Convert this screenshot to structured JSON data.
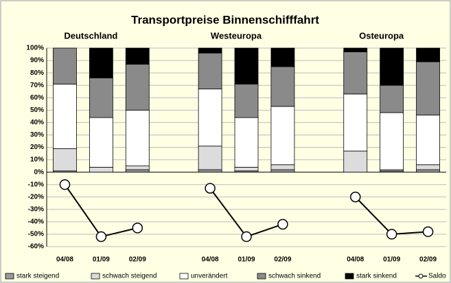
{
  "chart_data": {
    "type": "bar",
    "stacked": true,
    "title": "Transportpreise Binnenschifffahrt",
    "groups": [
      "Deutschland",
      "Westeuropa",
      "Osteuropa"
    ],
    "categories": [
      "04/08",
      "01/09",
      "02/09",
      null,
      "04/08",
      "01/09",
      "02/09",
      null,
      "04/08",
      "01/09",
      "02/09"
    ],
    "series": [
      {
        "name": "stark steigend",
        "color": "#9a9a9a",
        "values": [
          1,
          0,
          2,
          null,
          2,
          1,
          2,
          null,
          0,
          1,
          2
        ]
      },
      {
        "name": "schwach steigend",
        "color": "#dcdcdc",
        "values": [
          18,
          4,
          3,
          null,
          19,
          3,
          4,
          null,
          17,
          1,
          4
        ]
      },
      {
        "name": "unverändert",
        "color": "#ffffff",
        "values": [
          52,
          40,
          45,
          null,
          46,
          40,
          47,
          null,
          46,
          46,
          40
        ]
      },
      {
        "name": "schwach sinkend",
        "color": "#8a8a8a",
        "values": [
          29,
          32,
          37,
          null,
          29,
          27,
          32,
          null,
          34,
          22,
          43
        ]
      },
      {
        "name": "stark sinkend",
        "color": "#000000",
        "values": [
          0,
          24,
          13,
          null,
          4,
          29,
          15,
          null,
          3,
          30,
          11
        ]
      },
      {
        "name": "Saldo",
        "type": "line",
        "color": "#000000",
        "values": [
          -10,
          -52,
          -45,
          null,
          -13,
          -52,
          -42,
          null,
          -20,
          -50,
          -48
        ]
      }
    ],
    "ylim": [
      -60,
      100
    ],
    "yticks": [
      {
        "value": -60,
        "label": "-60%"
      },
      {
        "value": -50,
        "label": "-50%"
      },
      {
        "value": -40,
        "label": "-40%"
      },
      {
        "value": -30,
        "label": "-30%"
      },
      {
        "value": -20,
        "label": "-20%"
      },
      {
        "value": -10,
        "label": "-10%"
      },
      {
        "value": 0,
        "label": "0%"
      },
      {
        "value": 10,
        "label": "10%"
      },
      {
        "value": 20,
        "label": "20%"
      },
      {
        "value": 30,
        "label": "30%"
      },
      {
        "value": 40,
        "label": "40%"
      },
      {
        "value": 50,
        "label": "50%"
      },
      {
        "value": 60,
        "label": "60%"
      },
      {
        "value": 70,
        "label": "70%"
      },
      {
        "value": 80,
        "label": "80%"
      },
      {
        "value": 90,
        "label": "90%"
      },
      {
        "value": 100,
        "label": "100%"
      }
    ],
    "grid": true,
    "legend": "bottom"
  }
}
